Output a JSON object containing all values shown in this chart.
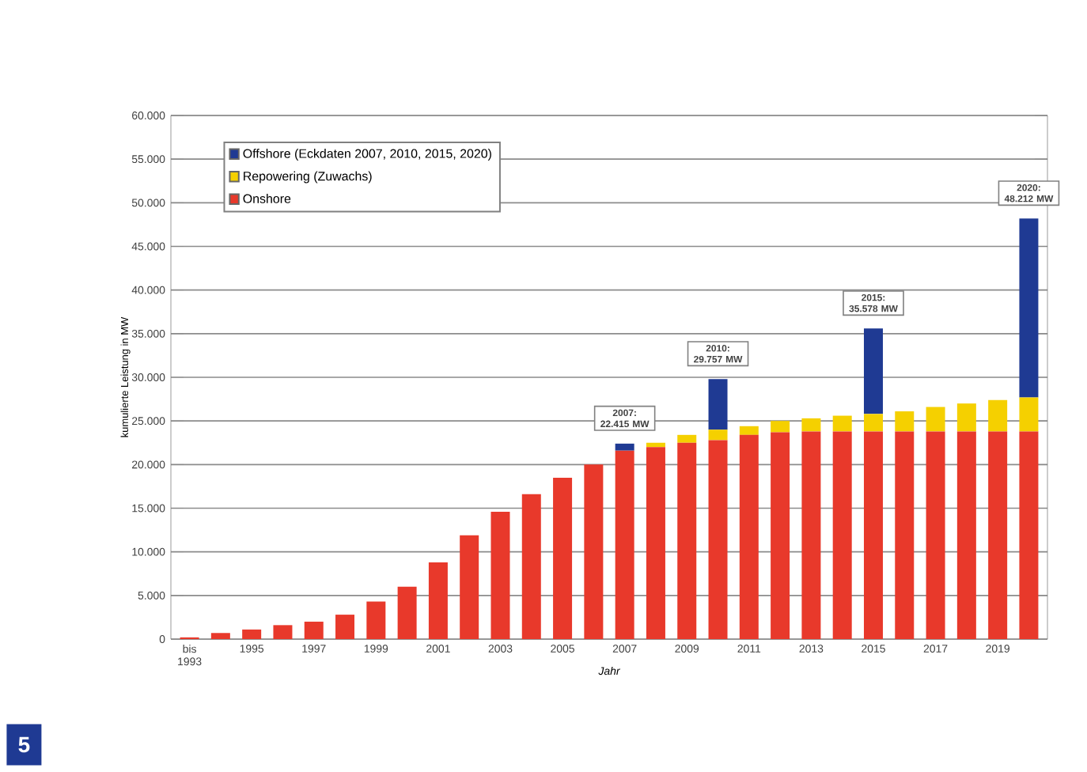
{
  "chart_data": {
    "type": "bar",
    "stacked": true,
    "xlabel": "Jahr",
    "ylabel": "kumulierte Leistung in MW",
    "categories": [
      "bis 1993",
      null,
      "1995",
      null,
      "1997",
      null,
      "1999",
      null,
      "2001",
      null,
      "2003",
      null,
      "2005",
      null,
      "2007",
      null,
      "2009",
      null,
      "2011",
      null,
      "2013",
      null,
      "2015",
      null,
      "2017",
      null,
      "2019",
      null
    ],
    "series": [
      {
        "name": "Onshore",
        "color": "#e8392b",
        "values": [
          200,
          700,
          1100,
          1600,
          2000,
          2800,
          4300,
          6000,
          8800,
          11900,
          14600,
          16600,
          18500,
          20000,
          21600,
          22000,
          22500,
          22800,
          23400,
          23700,
          23800,
          23800,
          23800,
          23800,
          23800,
          23800,
          23800,
          23800
        ]
      },
      {
        "name": "Repowering (Zuwachs)",
        "color": "#f5d000",
        "values": [
          0,
          0,
          0,
          0,
          0,
          0,
          0,
          0,
          0,
          0,
          0,
          0,
          0,
          0,
          0,
          500,
          900,
          1200,
          1000,
          1300,
          1500,
          1800,
          2000,
          2300,
          2800,
          3200,
          3600,
          3900
        ]
      },
      {
        "name": "Offshore (Eckdaten 2007, 2010, 2015, 2020)",
        "color": "#1f3a93",
        "values": [
          null,
          null,
          null,
          null,
          null,
          null,
          null,
          null,
          null,
          null,
          null,
          null,
          null,
          null,
          800,
          null,
          null,
          5800,
          null,
          null,
          null,
          null,
          9800,
          null,
          null,
          null,
          null,
          20500
        ]
      }
    ],
    "ylim": [
      0,
      60000
    ],
    "yticks": [
      0,
      {
        "value": 5000,
        "label": "5.000"
      },
      {
        "value": 10000,
        "label": "10.000"
      },
      {
        "value": 15000,
        "label": "15.000"
      },
      {
        "value": 20000,
        "label": "20.000"
      },
      {
        "value": 25000,
        "label": "25.000"
      },
      {
        "value": 30000,
        "label": "30.000"
      },
      {
        "value": 35000,
        "label": "35.000"
      },
      {
        "value": 40000,
        "label": "40.000"
      },
      {
        "value": 45000,
        "label": "45.000"
      },
      {
        "value": 50000,
        "label": "50.000"
      },
      {
        "value": 55000,
        "label": "55.000"
      },
      {
        "value": 60000,
        "label": "60.000"
      }
    ],
    "grid": "y",
    "legend": "top left",
    "annotations": [
      "2007: 22.415 MW",
      "2010: 29.757 MW",
      "2015: 35.578 MW",
      "2020: 48.212 MW",
      "5"
    ]
  }
}
